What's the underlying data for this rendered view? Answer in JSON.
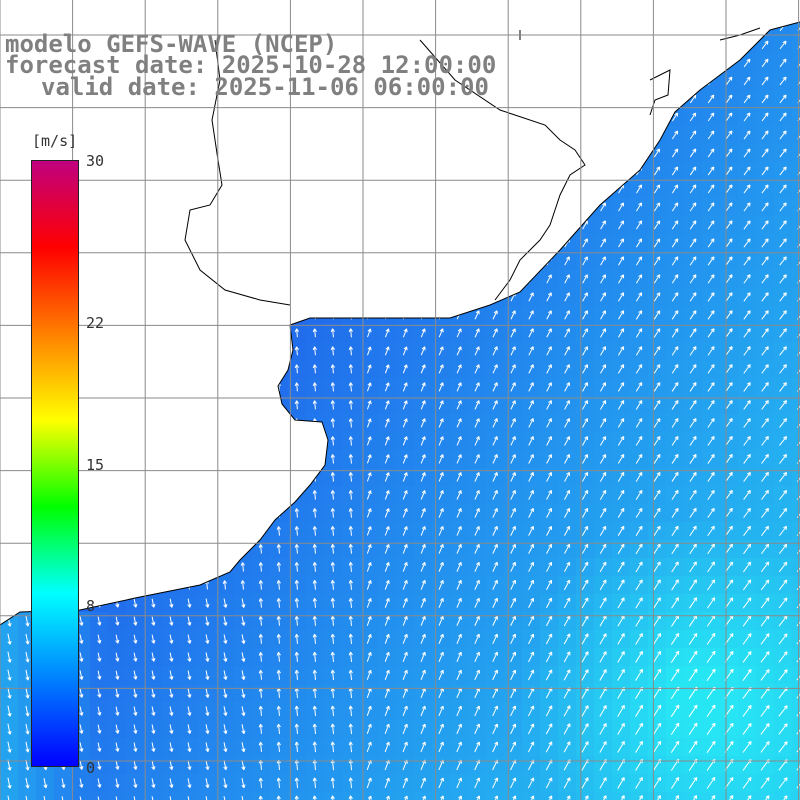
{
  "titles": {
    "model": "modelo GEFS-WAVE (NCEP)",
    "forecast": "forecast date: 2025-10-28 12:00:00",
    "valid": "valid date: 2025-11-06 06:00:00"
  },
  "colorbar": {
    "unit": "[m/s]",
    "ticks": [
      {
        "label": "30",
        "value": 30
      },
      {
        "label": "22",
        "value": 22
      },
      {
        "label": "15",
        "value": 15
      },
      {
        "label": "8",
        "value": 8
      },
      {
        "label": "0",
        "value": 0
      }
    ],
    "colors": [
      "#0000ff",
      "#0080ff",
      "#00ffff",
      "#00ff00",
      "#ffff00",
      "#ff8000",
      "#ff0000",
      "#c0007f"
    ]
  },
  "map": {
    "variable": "wind speed and direction",
    "ocean_color_low": "#1f4fea",
    "ocean_color_high": "#27e6f4",
    "land_color": "#ffffff",
    "grid_color": "#8a8a8a",
    "coast_color": "#000000"
  }
}
